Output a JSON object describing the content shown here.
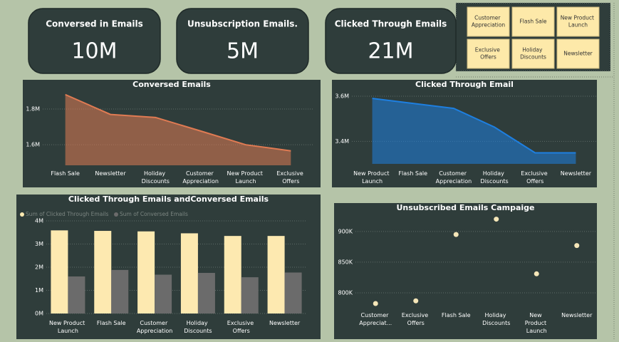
{
  "cards": [
    {
      "title": "Conversed in Emails",
      "value": "10M"
    },
    {
      "title": "Unsubscription Emails.",
      "value": "5M"
    },
    {
      "title": "Clicked Through Emails",
      "value": "21M"
    }
  ],
  "slicer": [
    "Customer Appreciation",
    "Flash Sale",
    "New Product Launch",
    "Exclusive Offers",
    "Holiday Discounts",
    "Newsletter"
  ],
  "chart_data": [
    {
      "type": "area",
      "title": "Conversed Emails",
      "categories": [
        "Flash Sale",
        "Newsletter",
        "Holiday Discounts",
        "Customer Appreciation",
        "New Product Launch",
        "Exclusive Offers"
      ],
      "values": [
        1881000,
        1770000,
        1753000,
        1677000,
        1600000,
        1566000
      ],
      "color": "#e07b53",
      "ylim": [
        1485000,
        1900000
      ],
      "yticks": [
        {
          "value": 1600000,
          "label": "1.6M"
        },
        {
          "value": 1800000,
          "label": "1.8M"
        }
      ],
      "grid": true
    },
    {
      "type": "area",
      "title": "Clicked Through Email",
      "categories": [
        "New Product Launch",
        "Flash Sale",
        "Customer Appreciation",
        "Holiday Discounts",
        "Exclusive Offers",
        "Newsletter"
      ],
      "values": [
        3590000,
        3568000,
        3546000,
        3463000,
        3349000,
        3349000
      ],
      "color": "#1e7fe0",
      "ylim": [
        3300000,
        3622000
      ],
      "yticks": [
        {
          "value": 3400000,
          "label": "3.4M"
        },
        {
          "value": 3600000,
          "label": "3.6M"
        }
      ],
      "grid": true
    },
    {
      "type": "bar",
      "title": "Clicked Through Emails andConversed Emails",
      "categories": [
        "New Product Launch",
        "Flash Sale",
        "Customer Appreciation",
        "Holiday Discounts",
        "Exclusive Offers",
        "Newsletter"
      ],
      "series": [
        {
          "name": "Sum of Clicked Through Emails",
          "color": "#fde9b0",
          "values": [
            3590000,
            3568000,
            3546000,
            3463000,
            3349000,
            3349000
          ]
        },
        {
          "name": "Sum of Conversed Emails",
          "color": "#6b6b6b",
          "values": [
            1600000,
            1881000,
            1677000,
            1753000,
            1566000,
            1770000
          ]
        }
      ],
      "ylim": [
        0,
        4000000
      ],
      "yticks": [
        {
          "value": 0,
          "label": "0M"
        },
        {
          "value": 1000000,
          "label": "1M"
        },
        {
          "value": 2000000,
          "label": "2M"
        },
        {
          "value": 3000000,
          "label": "3M"
        },
        {
          "value": 4000000,
          "label": "4M"
        }
      ],
      "grid": true,
      "legend": "top-left"
    },
    {
      "type": "dot",
      "title": "Unsubscribed Emails Campaige",
      "categories": [
        "Customer Appreciat...",
        "Exclusive Offers",
        "Flash Sale",
        "Holiday Discounts",
        "New Product Launch",
        "Newsletter"
      ],
      "values": [
        782600,
        787000,
        895000,
        920000,
        831000,
        877000
      ],
      "color": "#f5e6b8",
      "ylim": [
        778000,
        923000
      ],
      "yticks": [
        {
          "value": 800000,
          "label": "800K"
        },
        {
          "value": 850000,
          "label": "850K"
        },
        {
          "value": 900000,
          "label": "900K"
        }
      ],
      "grid": true
    }
  ]
}
